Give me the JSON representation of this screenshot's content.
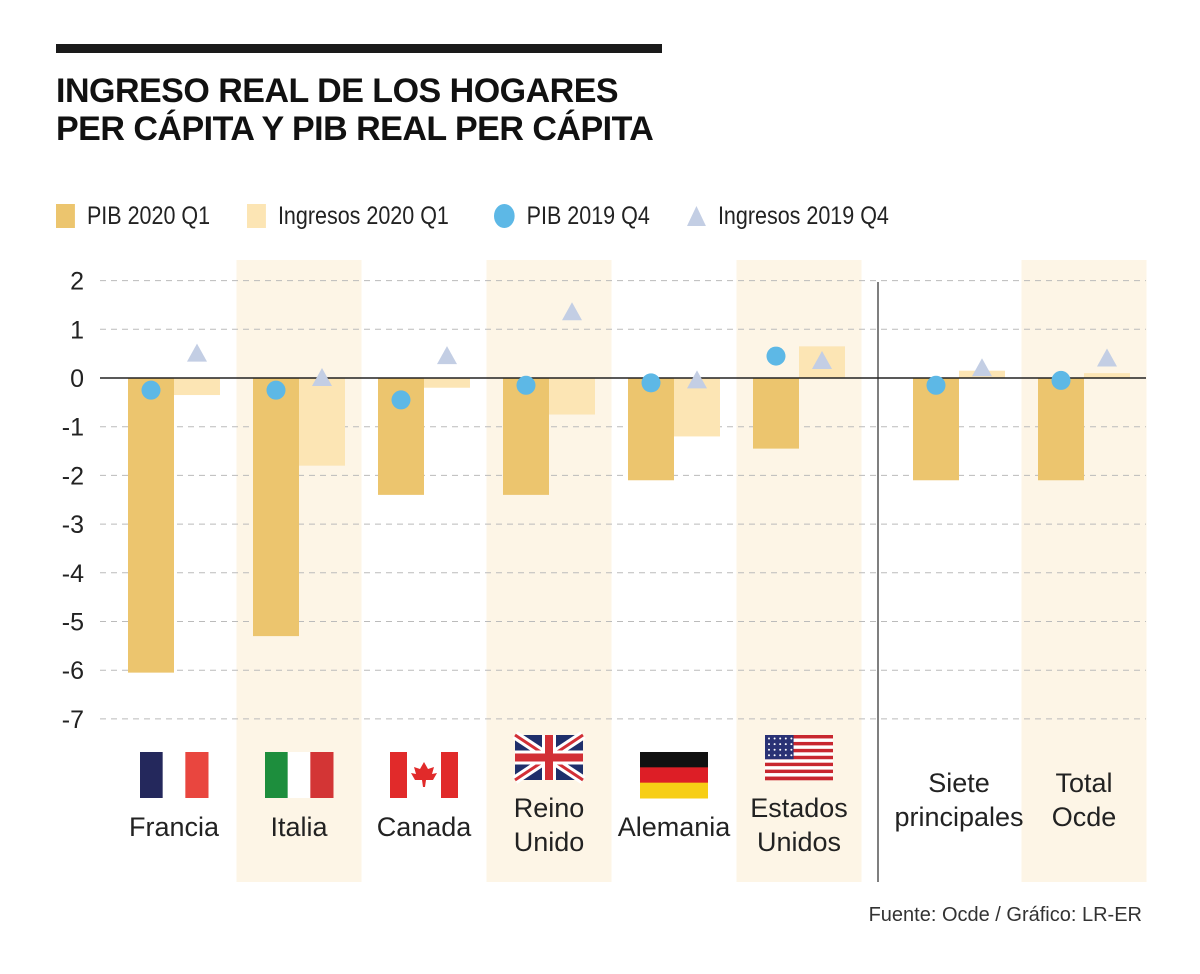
{
  "title": {
    "line1": "INGRESO REAL DE LOS HOGARES",
    "line2": "PER CÁPITA Y PIB REAL PER CÁPITA"
  },
  "legend": [
    {
      "label": "PIB 2020 Q1",
      "shape": "square",
      "color": "#ECC56E"
    },
    {
      "label": "Ingresos 2020 Q1",
      "shape": "square",
      "color": "#FCE5B4"
    },
    {
      "label": "PIB 2019 Q4",
      "shape": "circle",
      "color": "#5DB8E6"
    },
    {
      "label": "Ingresos 2019 Q4",
      "shape": "triangle",
      "color": "#C3CEE4"
    }
  ],
  "source": "Fuente: Ocde / Gráfico: LR-ER",
  "chart_data": {
    "type": "bar",
    "title": "INGRESO REAL DE LOS HOGARES PER CÁPITA Y PIB REAL PER CÁPITA",
    "categories": [
      {
        "label_lines": [
          "Francia"
        ],
        "flag": "france-flag-icon",
        "shaded": false
      },
      {
        "label_lines": [
          "Italia"
        ],
        "flag": "italy-flag-icon",
        "shaded": true
      },
      {
        "label_lines": [
          "Canada"
        ],
        "flag": "canada-flag-icon",
        "shaded": false
      },
      {
        "label_lines": [
          "Reino",
          "Unido"
        ],
        "flag": "uk-flag-icon",
        "shaded": true
      },
      {
        "label_lines": [
          "Alemania"
        ],
        "flag": "germany-flag-icon",
        "shaded": false
      },
      {
        "label_lines": [
          "Estados",
          "Unidos"
        ],
        "flag": "usa-flag-icon",
        "shaded": true
      },
      {
        "label_lines": [
          "Siete",
          "principales"
        ],
        "flag": null,
        "shaded": false
      },
      {
        "label_lines": [
          "Total",
          "Ocde"
        ],
        "flag": null,
        "shaded": true
      }
    ],
    "series": [
      {
        "name": "PIB 2020 Q1",
        "kind": "bar",
        "color": "#ECC56E",
        "values": [
          -6.05,
          -5.3,
          -2.4,
          -2.4,
          -2.1,
          -1.45,
          -2.1,
          -2.1
        ]
      },
      {
        "name": "Ingresos 2020 Q1",
        "kind": "bar",
        "color": "#FCE5B4",
        "values": [
          -0.35,
          -1.8,
          -0.2,
          -0.75,
          -1.2,
          0.65,
          0.15,
          0.1
        ]
      },
      {
        "name": "PIB 2019 Q4",
        "kind": "circle",
        "color": "#5DB8E6",
        "values": [
          -0.25,
          -0.25,
          -0.45,
          -0.15,
          -0.1,
          0.45,
          -0.15,
          -0.05
        ]
      },
      {
        "name": "Ingresos 2019 Q4",
        "kind": "triangle",
        "color": "#C3CEE4",
        "values": [
          0.5,
          0.0,
          0.45,
          1.35,
          -0.05,
          0.35,
          0.2,
          0.4
        ]
      }
    ],
    "yticks": [
      2,
      1,
      0,
      -1,
      -2,
      -3,
      -4,
      -5,
      -6,
      -7
    ],
    "ylim": [
      -7,
      2
    ],
    "xlabel": "",
    "ylabel": "",
    "grid": true,
    "colors": {
      "shade": "#FDF5E6",
      "grid": "#BBBBBB",
      "divider": "#555555",
      "axis": "#222222"
    }
  }
}
